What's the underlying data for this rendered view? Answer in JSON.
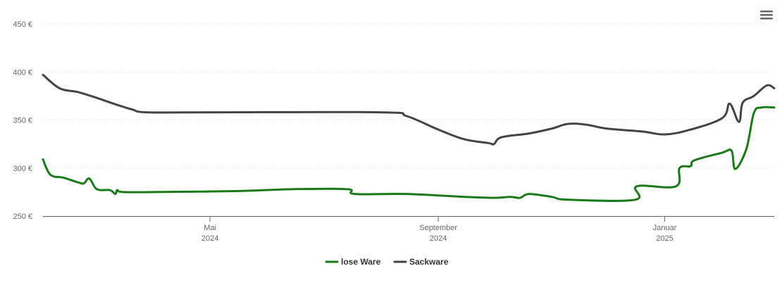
{
  "menu_icon": "hamburger-menu-icon",
  "chart_data": {
    "type": "line",
    "title": "",
    "xlabel": "",
    "ylabel": "",
    "y_unit": "€",
    "ylim": [
      250,
      450
    ],
    "yticks": [
      250,
      300,
      350,
      400,
      450
    ],
    "ytick_labels": [
      "250 €",
      "300 €",
      "350 €",
      "400 €",
      "450 €"
    ],
    "xlim": [
      "2024-02-01",
      "2025-03-01"
    ],
    "xticks": [
      {
        "date": "2024-05-01",
        "label": "Mai",
        "sublabel": "2024"
      },
      {
        "date": "2024-09-01",
        "label": "September",
        "sublabel": "2024"
      },
      {
        "date": "2025-01-01",
        "label": "Januar",
        "sublabel": "2025"
      }
    ],
    "grid": true,
    "legend_position": "bottom-center",
    "series": [
      {
        "name": "lose Ware",
        "color": "#1a7a1a",
        "points": [
          [
            "2024-02-01",
            309
          ],
          [
            "2024-02-05",
            293
          ],
          [
            "2024-02-12",
            290
          ],
          [
            "2024-02-20",
            285
          ],
          [
            "2024-02-23",
            284
          ],
          [
            "2024-02-26",
            289
          ],
          [
            "2024-03-01",
            278
          ],
          [
            "2024-03-08",
            277
          ],
          [
            "2024-03-11",
            273
          ],
          [
            "2024-03-12",
            277
          ],
          [
            "2024-03-15",
            275
          ],
          [
            "2024-04-01",
            275
          ],
          [
            "2024-05-15",
            276
          ],
          [
            "2024-06-15",
            278
          ],
          [
            "2024-07-14",
            278
          ],
          [
            "2024-07-18",
            273
          ],
          [
            "2024-08-15",
            273
          ],
          [
            "2024-09-15",
            270
          ],
          [
            "2024-10-01",
            269
          ],
          [
            "2024-10-10",
            270
          ],
          [
            "2024-10-15",
            269
          ],
          [
            "2024-10-20",
            273
          ],
          [
            "2024-11-01",
            270
          ],
          [
            "2024-11-10",
            267
          ],
          [
            "2024-12-16",
            267
          ],
          [
            "2024-12-17",
            281
          ],
          [
            "2025-01-07",
            281
          ],
          [
            "2025-01-09",
            300
          ],
          [
            "2025-01-15",
            302
          ],
          [
            "2025-01-17",
            308
          ],
          [
            "2025-02-01",
            316
          ],
          [
            "2025-02-06",
            318
          ],
          [
            "2025-02-08",
            299
          ],
          [
            "2025-02-14",
            320
          ],
          [
            "2025-02-18",
            357
          ],
          [
            "2025-02-22",
            363
          ],
          [
            "2025-03-01",
            363
          ]
        ]
      },
      {
        "name": "Sackware",
        "color": "#444444",
        "points": [
          [
            "2024-02-01",
            397
          ],
          [
            "2024-02-10",
            383
          ],
          [
            "2024-02-20",
            379
          ],
          [
            "2024-03-01",
            373
          ],
          [
            "2024-03-10",
            367
          ],
          [
            "2024-03-20",
            361
          ],
          [
            "2024-03-28",
            358
          ],
          [
            "2024-05-01",
            358
          ],
          [
            "2024-08-01",
            358
          ],
          [
            "2024-08-15",
            354
          ],
          [
            "2024-09-01",
            340
          ],
          [
            "2024-09-15",
            330
          ],
          [
            "2024-09-28",
            326
          ],
          [
            "2024-10-01",
            325
          ],
          [
            "2024-10-05",
            332
          ],
          [
            "2024-10-20",
            336
          ],
          [
            "2024-11-01",
            341
          ],
          [
            "2024-11-10",
            346
          ],
          [
            "2024-11-20",
            345
          ],
          [
            "2024-12-01",
            341
          ],
          [
            "2024-12-20",
            338
          ],
          [
            "2025-01-01",
            335
          ],
          [
            "2025-01-15",
            340
          ],
          [
            "2025-02-01",
            352
          ],
          [
            "2025-02-05",
            367
          ],
          [
            "2025-02-10",
            348
          ],
          [
            "2025-02-12",
            368
          ],
          [
            "2025-02-18",
            375
          ],
          [
            "2025-02-25",
            386
          ],
          [
            "2025-03-01",
            383
          ]
        ]
      }
    ]
  }
}
